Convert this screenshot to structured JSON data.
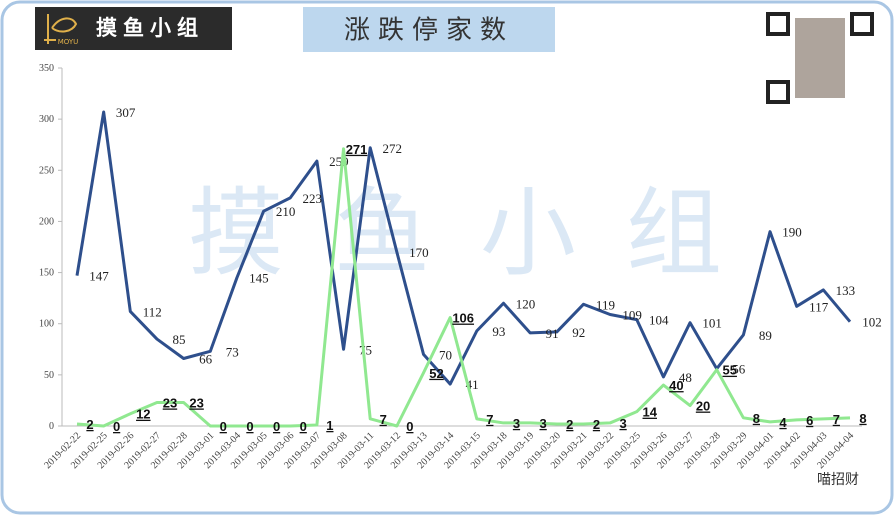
{
  "watermark": "摸鱼小组",
  "logo": {
    "text": "摸鱼小组",
    "sub": "MOYU"
  },
  "credit": "喵招财",
  "chart_data": {
    "type": "line",
    "title": "涨跌停家数",
    "categories": [
      "2019-02-22",
      "2019-02-25",
      "2019-02-26",
      "2019-02-27",
      "2019-02-28",
      "2019-03-01",
      "2019-03-04",
      "2019-03-05",
      "2019-03-06",
      "2019-03-07",
      "2019-03-08",
      "2019-03-11",
      "2019-03-12",
      "2019-03-13",
      "2019-03-14",
      "2019-03-15",
      "2019-03-18",
      "2019-03-19",
      "2019-03-20",
      "2019-03-21",
      "2019-03-22",
      "2019-03-25",
      "2019-03-26",
      "2019-03-27",
      "2019-03-28",
      "2019-03-29",
      "2019-04-01",
      "2019-04-02",
      "2019-04-03",
      "2019-04-04"
    ],
    "series": [
      {
        "color": "#2e4f8c",
        "values": [
          147,
          307,
          112,
          85,
          66,
          73,
          145,
          210,
          223,
          259,
          75,
          272,
          170,
          70,
          41,
          93,
          120,
          91,
          92,
          119,
          109,
          104,
          48,
          101,
          56,
          89,
          190,
          117,
          133,
          102
        ]
      },
      {
        "color": "#90e890",
        "values": [
          2,
          0,
          12,
          23,
          23,
          0,
          0,
          0,
          0,
          1,
          271,
          7,
          0,
          52,
          106,
          7,
          3,
          3,
          2,
          2,
          3,
          14,
          40,
          20,
          55,
          8,
          4,
          6,
          7,
          8
        ]
      }
    ],
    "ylim": [
      0,
      350
    ],
    "yticks": [
      0,
      50,
      100,
      150,
      200,
      250,
      300,
      350
    ],
    "grid": false
  }
}
